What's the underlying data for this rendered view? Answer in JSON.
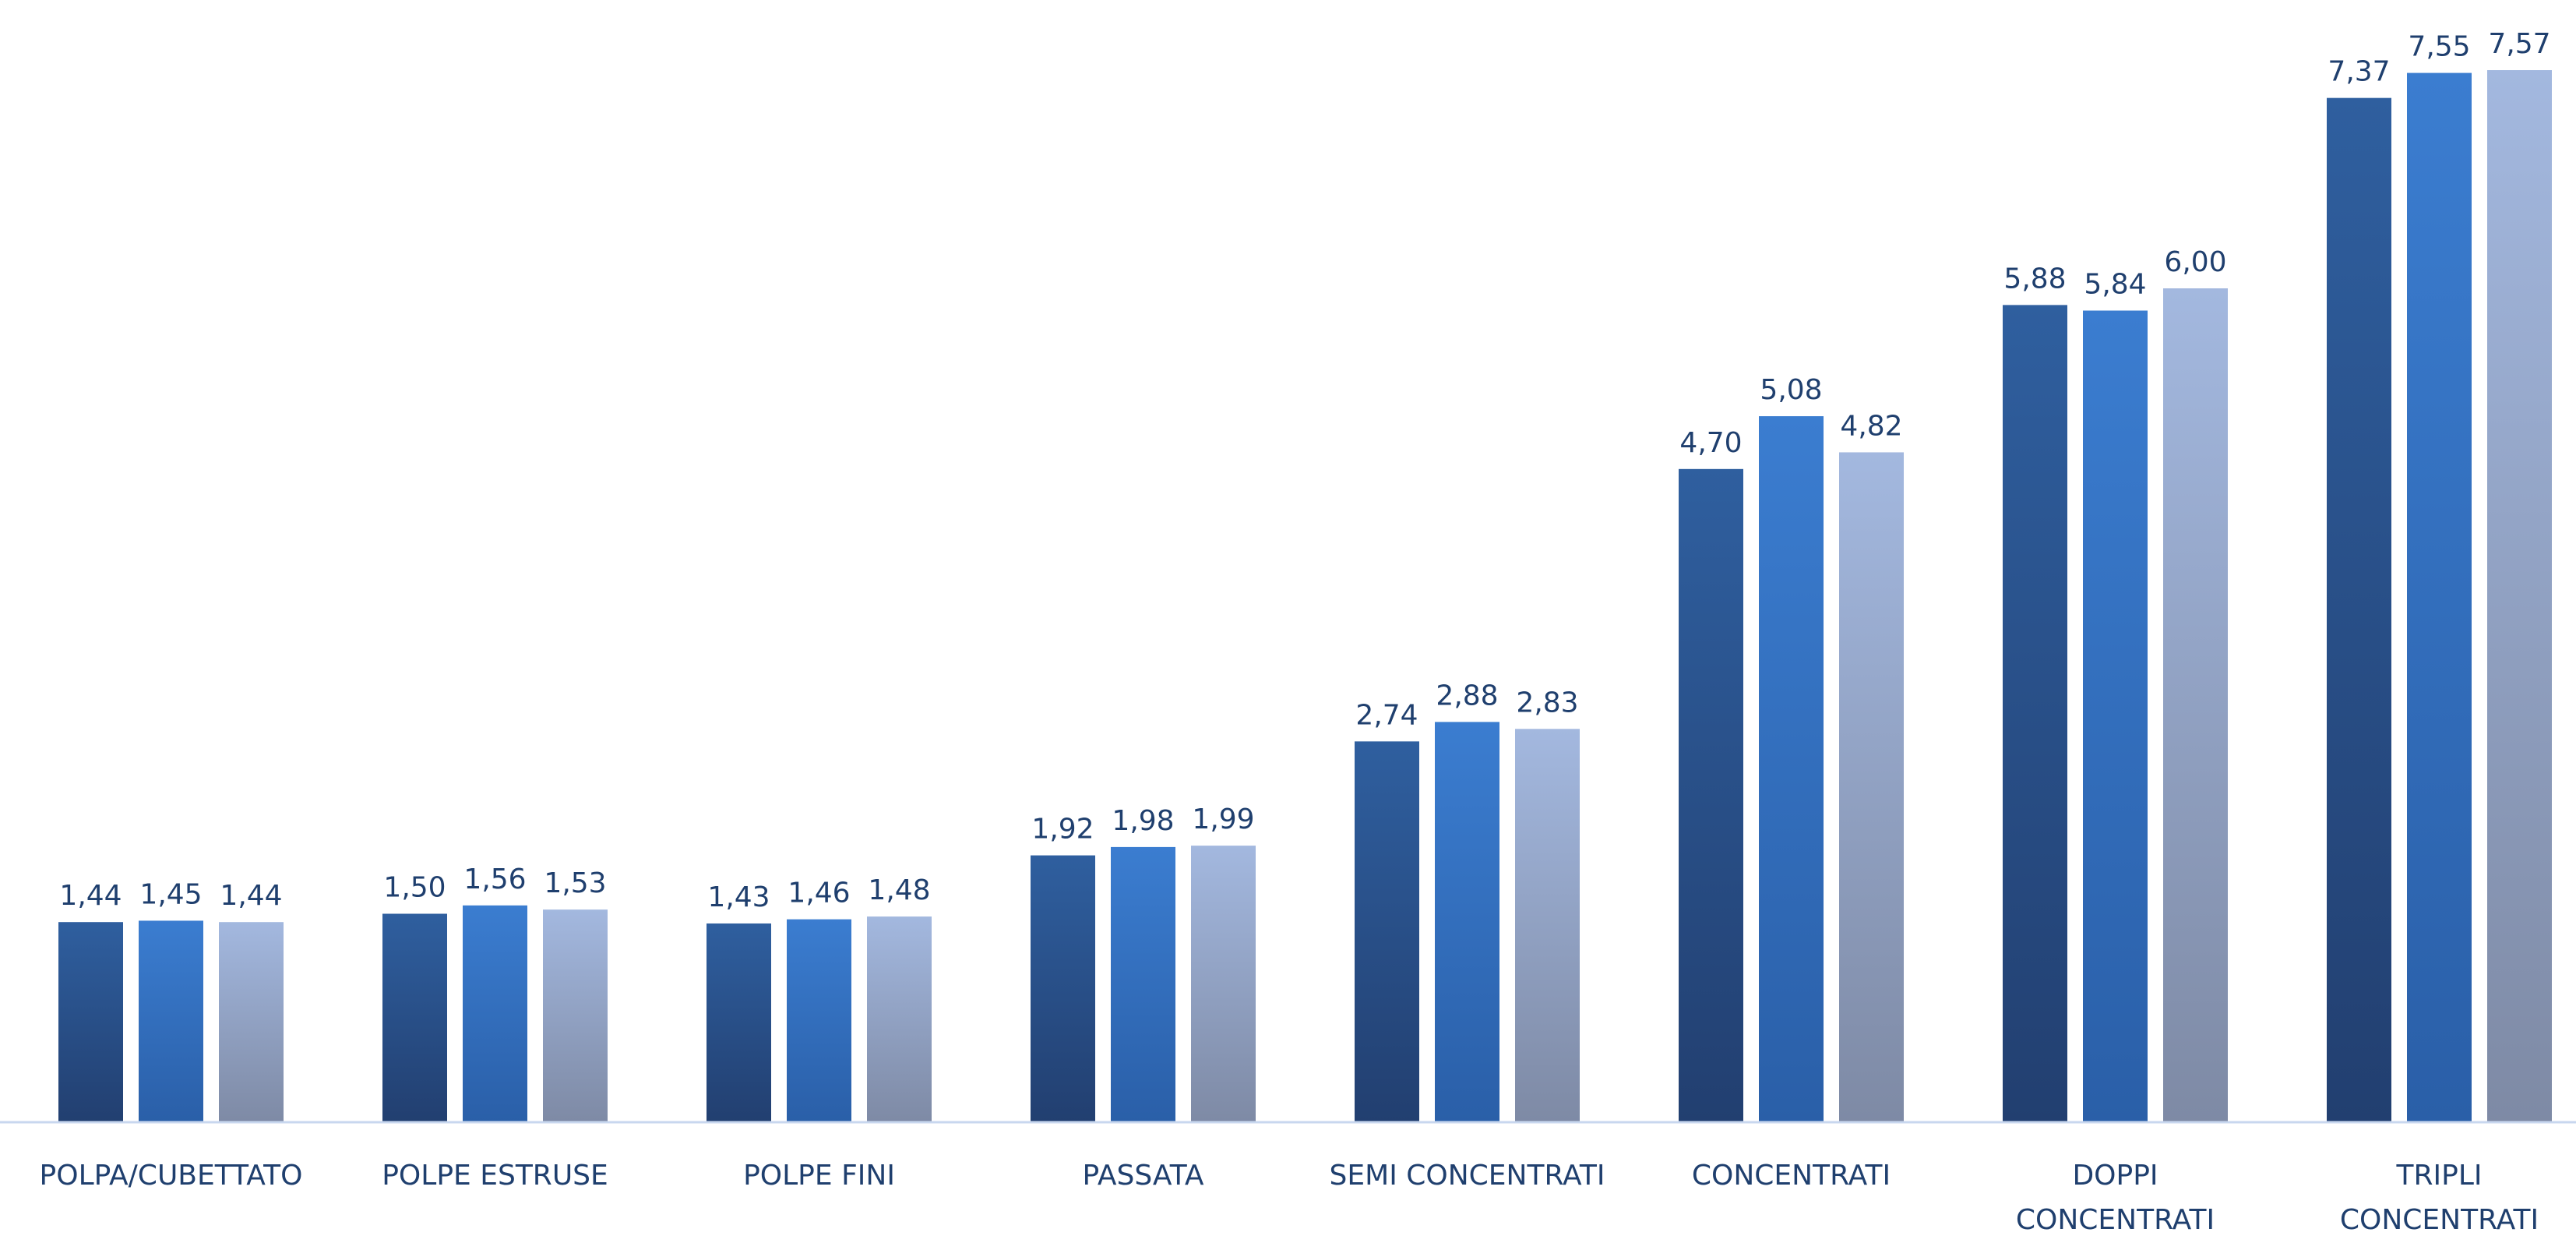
{
  "chart_data": {
    "type": "bar",
    "title": "",
    "xlabel": "",
    "ylabel": "",
    "ylim": [
      0,
      7.57
    ],
    "grid": false,
    "legend": "none",
    "categories": [
      [
        "POLPA/CUBETTATO"
      ],
      [
        "POLPE ESTRUSE"
      ],
      [
        "POLPE FINI"
      ],
      [
        "PASSATA"
      ],
      [
        "SEMI CONCENTRATI"
      ],
      [
        "CONCENTRATI"
      ],
      [
        "DOPPI",
        "CONCENTRATI"
      ],
      [
        "TRIPLI",
        "CONCENTRATI"
      ]
    ],
    "series": [
      {
        "values": [
          1.44,
          1.5,
          1.43,
          1.92,
          2.74,
          4.7,
          5.88,
          7.37
        ],
        "labels": [
          "1,44",
          "1,50",
          "1,43",
          "1,92",
          "2,74",
          "4,70",
          "5,88",
          "7,37"
        ],
        "color_top": "#2f5f9f",
        "color_bottom": "#223f70"
      },
      {
        "values": [
          1.45,
          1.56,
          1.46,
          1.98,
          2.88,
          5.08,
          5.84,
          7.55
        ],
        "labels": [
          "1,45",
          "1,56",
          "1,46",
          "1,98",
          "2,88",
          "5,08",
          "5,84",
          "7,55"
        ],
        "color_top": "#3b7dd0",
        "color_bottom": "#2a5fa8"
      },
      {
        "values": [
          1.44,
          1.53,
          1.48,
          1.99,
          2.83,
          4.82,
          6.0,
          7.57
        ],
        "labels": [
          "1,44",
          "1,53",
          "1,48",
          "1,99",
          "2,83",
          "4,82",
          "6,00",
          "7,57"
        ],
        "color_top": "#a3b8df",
        "color_bottom": "#7e8aa5"
      }
    ],
    "colors": {
      "axis": "#c8d7ef",
      "label": "#1f3f6e"
    }
  }
}
